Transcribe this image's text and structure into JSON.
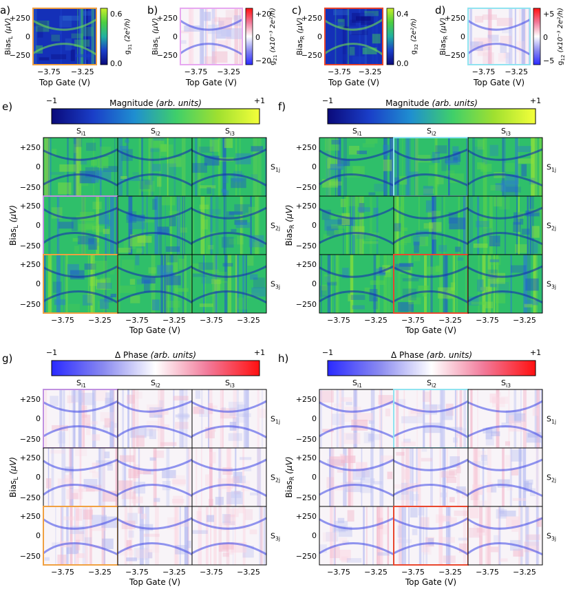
{
  "colors": {
    "mag_cmap": [
      "#0a0a7a",
      "#1a3ec8",
      "#1f8fd0",
      "#3fcf6a",
      "#9fe030",
      "#f4ff3a"
    ],
    "phase_cmap": [
      "#2a2aff",
      "#8a8af0",
      "#ffffff",
      "#f27a9a",
      "#ff1010"
    ],
    "cond_cmap": [
      "#0a0a7a",
      "#1a3ec8",
      "#20b0a0",
      "#4ccf40",
      "#c8ef28"
    ],
    "frame_orange": "#f0a040",
    "frame_pink": "#e7a7f0",
    "frame_red": "#e8452c",
    "frame_cyan": "#8fe3f0",
    "frame_purple": "#c090e0"
  },
  "top_panels": [
    {
      "letter": "a)",
      "ylabel_main": "Bias",
      "ylabel_sub": "L",
      "ylabel_unit": " (μV)",
      "xlabel": "Top Gate (V)",
      "yticks": [
        "+250",
        "0",
        "−250"
      ],
      "xticks": [
        "−3.75",
        "−3.25"
      ],
      "cbar_label": "g",
      "cbar_sub": "31",
      "cbar_unit": " (2e²/h)",
      "cbar_ticks": [
        "0.6",
        "0.0"
      ],
      "cmap": "cond",
      "frame": "orange"
    },
    {
      "letter": "b)",
      "ylabel_main": "Bias",
      "ylabel_sub": "L",
      "ylabel_unit": " (μV)",
      "xlabel": "Top Gate (V)",
      "yticks": [
        "+250",
        "0",
        "−250"
      ],
      "xticks": [
        "−3.75",
        "−3.25"
      ],
      "cbar_label": "g",
      "cbar_sub": "21",
      "cbar_unit": " (x10⁻³ 2e²/h)",
      "cbar_ticks": [
        "+20",
        "0",
        "−20"
      ],
      "cmap": "phase",
      "frame": "pink"
    },
    {
      "letter": "c)",
      "ylabel_main": "Bias",
      "ylabel_sub": "R",
      "ylabel_unit": " (μV)",
      "xlabel": "Top Gate (V)",
      "yticks": [
        "+250",
        "0",
        "−250"
      ],
      "xticks": [
        "−3.75",
        "−3.25"
      ],
      "cbar_label": "g",
      "cbar_sub": "32",
      "cbar_unit": " (2e²/h)",
      "cbar_ticks": [
        "0.4",
        "0.0"
      ],
      "cmap": "cond",
      "frame": "red"
    },
    {
      "letter": "d)",
      "ylabel_main": "Bias",
      "ylabel_sub": "R",
      "ylabel_unit": " (μV)",
      "xlabel": "Top Gate (V)",
      "yticks": [
        "+250",
        "0",
        "−250"
      ],
      "xticks": [
        "−3.75",
        "−3.25"
      ],
      "cbar_label": "g",
      "cbar_sub": "12",
      "cbar_unit": " (x10⁻³ 2e²/h)",
      "cbar_ticks": [
        "+5",
        "0",
        "−5"
      ],
      "cmap": "phase",
      "frame": "cyan"
    }
  ],
  "grids": [
    {
      "letter": "e)",
      "cbar_title": "Magnitude",
      "cbar_unit": "(arb. units)",
      "cbar_min": "−1",
      "cbar_max": "+1",
      "cmap": "mag",
      "ylabel_main": "Bias",
      "ylabel_sub": "L",
      "ylabel_unit": " (μV)",
      "xlabel": "Top Gate (V)",
      "frames": {
        "1-1": "",
        "2-1": "purple",
        "3-1": "orange"
      }
    },
    {
      "letter": "f)",
      "cbar_title": "Magnitude",
      "cbar_unit": "(arb. units)",
      "cbar_min": "−1",
      "cbar_max": "+1",
      "cmap": "mag",
      "ylabel_main": "Bias",
      "ylabel_sub": "R",
      "ylabel_unit": " (μV)",
      "xlabel": "Top Gate (V)",
      "frames": {
        "1-2": "cyan",
        "3-2": "red"
      }
    },
    {
      "letter": "g)",
      "cbar_title": "Δ Phase",
      "cbar_unit": "(arb. units)",
      "cbar_min": "−1",
      "cbar_max": "+1",
      "cmap": "phase",
      "ylabel_main": "Bias",
      "ylabel_sub": "L",
      "ylabel_unit": " (μV)",
      "xlabel": "Top Gate (V)",
      "frames": {
        "1-1": "purple",
        "3-1": "orange"
      }
    },
    {
      "letter": "h)",
      "cbar_title": "Δ Phase",
      "cbar_unit": "(arb. units)",
      "cbar_min": "−1",
      "cbar_max": "+1",
      "cmap": "phase",
      "ylabel_main": "Bias",
      "ylabel_sub": "R",
      "ylabel_unit": " (μV)",
      "xlabel": "Top Gate (V)",
      "frames": {
        "1-2": "cyan",
        "3-2": "red"
      }
    }
  ],
  "grid_col_labels": [
    {
      "main": "S",
      "sub": "i1"
    },
    {
      "main": "S",
      "sub": "i2"
    },
    {
      "main": "S",
      "sub": "i3"
    }
  ],
  "grid_row_labels": [
    {
      "main": "S",
      "sub": "1j"
    },
    {
      "main": "S",
      "sub": "2j"
    },
    {
      "main": "S",
      "sub": "3j"
    }
  ],
  "grid_yticks": [
    "+250",
    "0",
    "−250"
  ],
  "grid_xticks": [
    "−3.75",
    "−3.25"
  ]
}
